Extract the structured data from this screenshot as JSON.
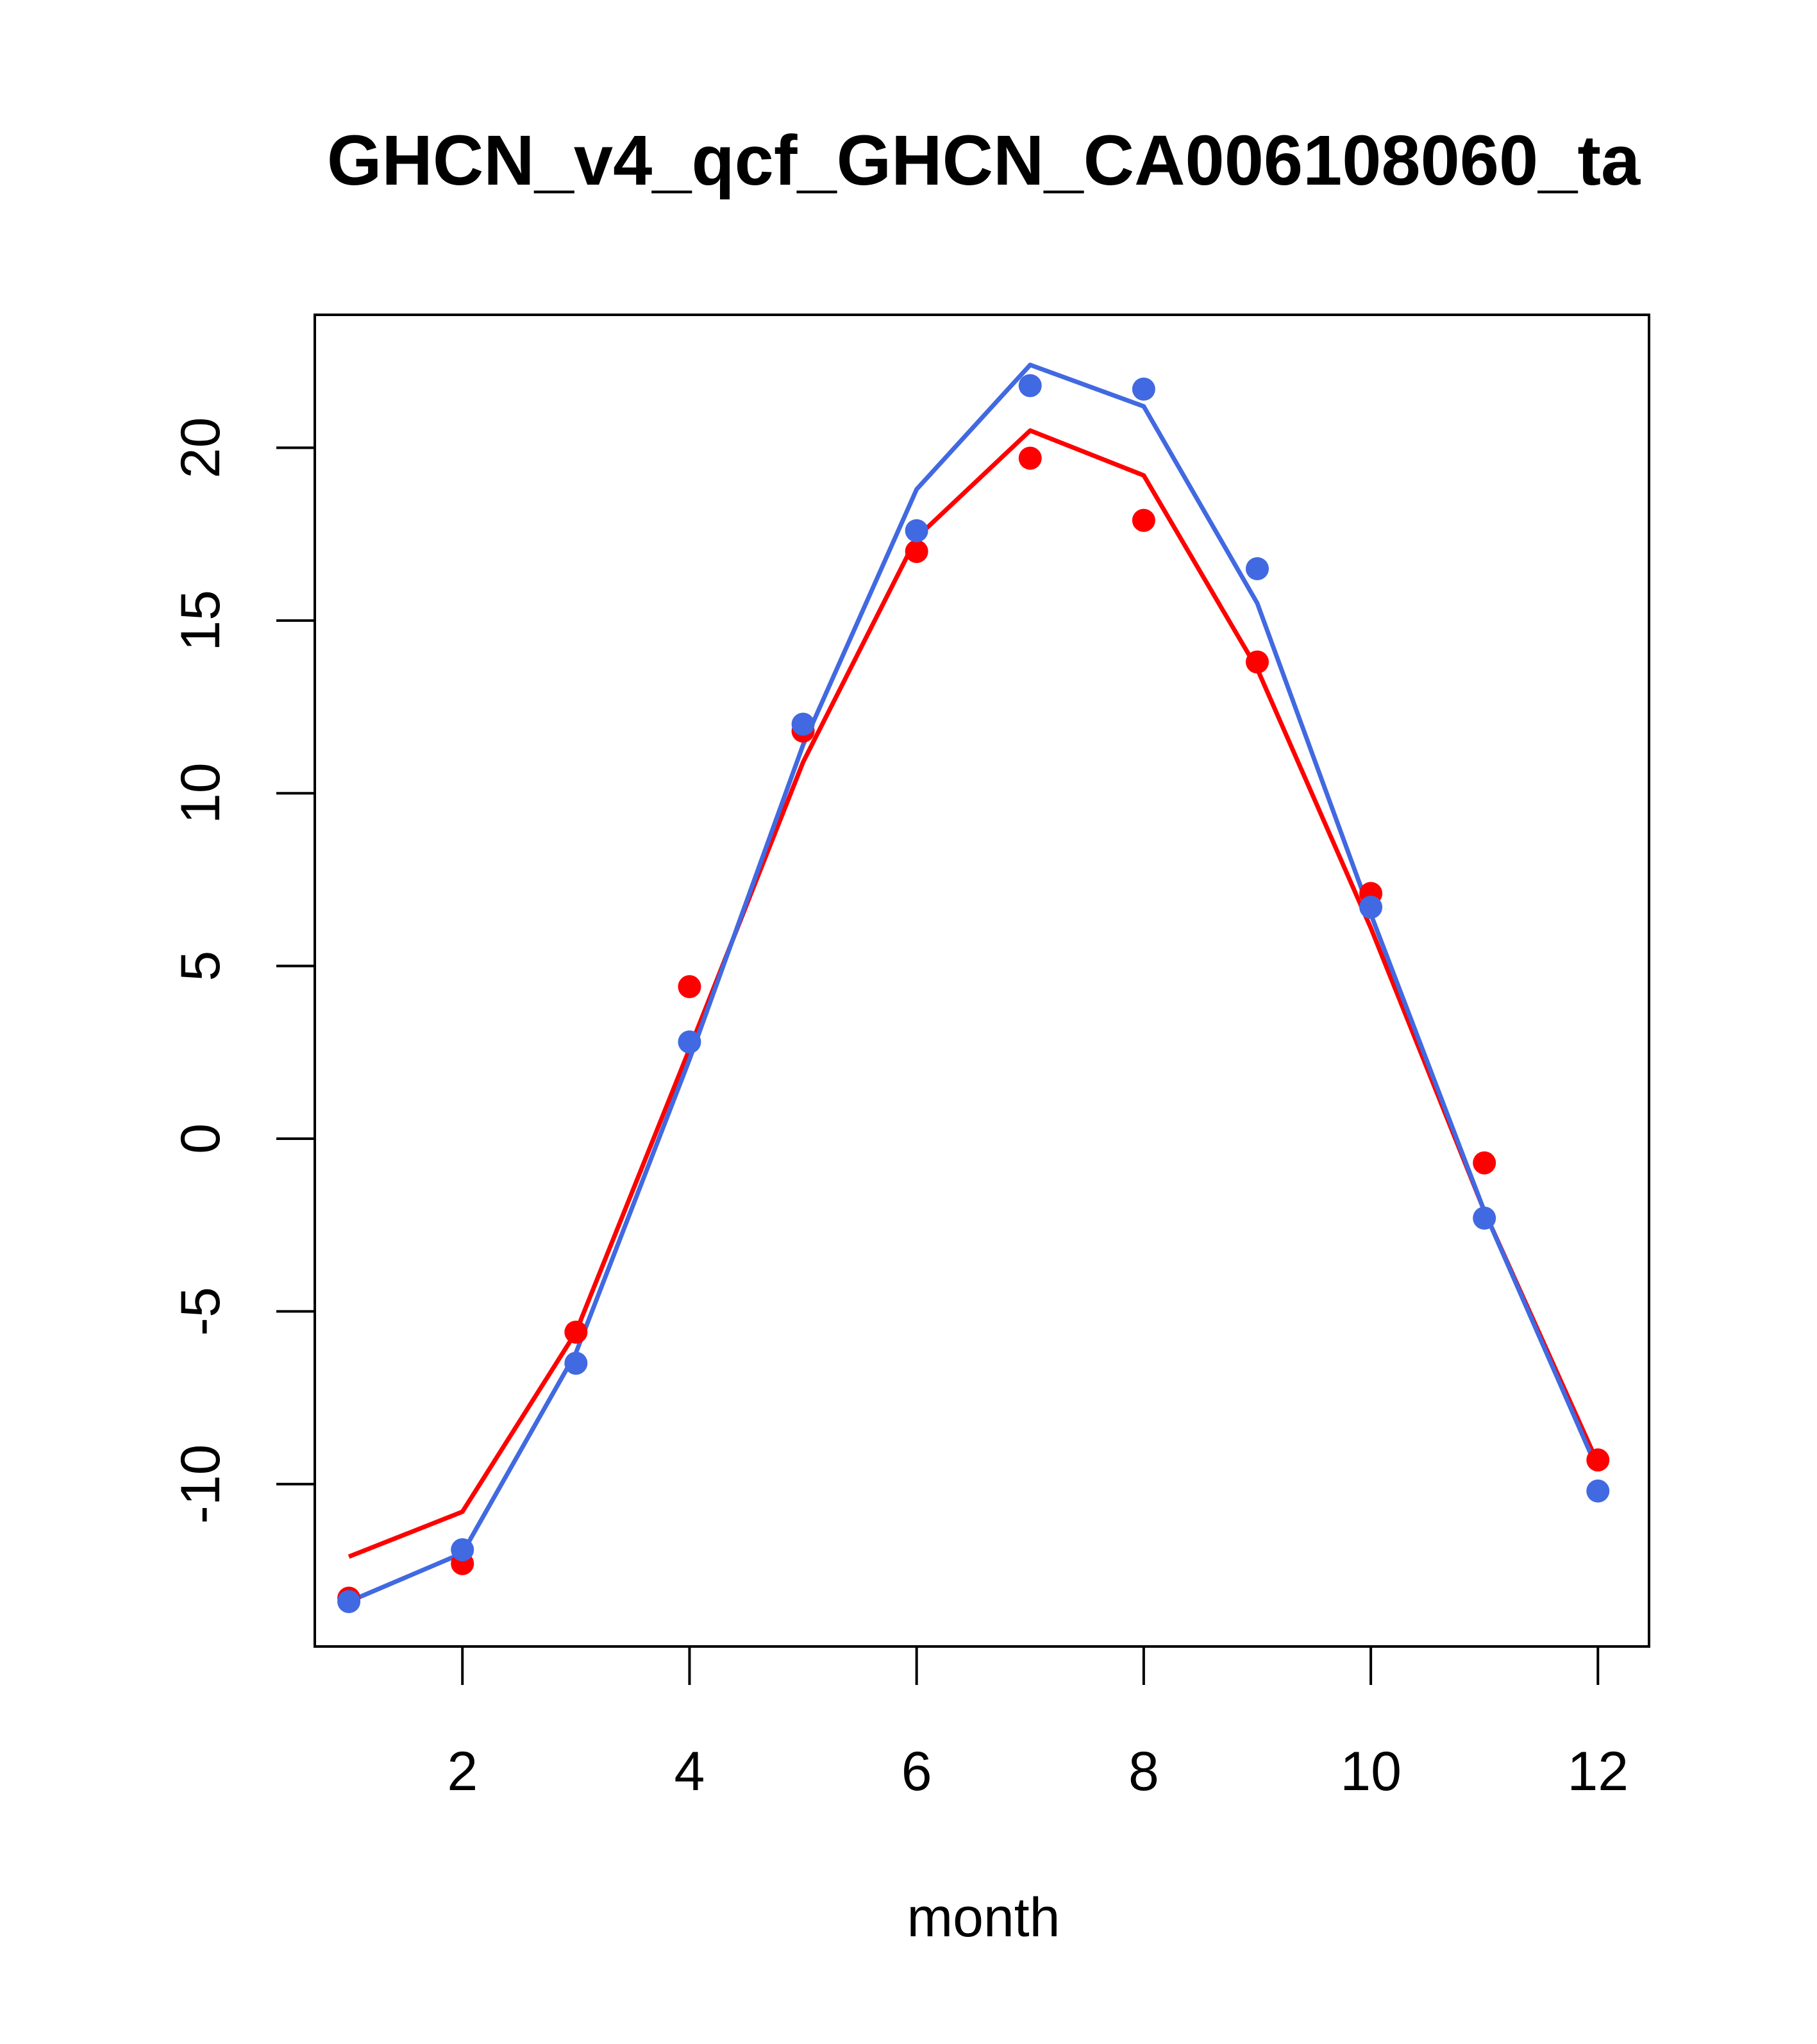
{
  "chart_data": {
    "type": "line",
    "title": "GHCN_v4_qcf_GHCN_CA006108060_ta",
    "xlabel": "month",
    "ylabel": "",
    "xlim": [
      0.7,
      12.45
    ],
    "ylim": [
      -14.7,
      23.85
    ],
    "x_ticks": [
      2,
      4,
      6,
      8,
      10,
      12
    ],
    "y_ticks": [
      -10,
      -5,
      0,
      5,
      10,
      15,
      20
    ],
    "grid": false,
    "legend": "none",
    "x": [
      1,
      2,
      3,
      4,
      5,
      6,
      7,
      8,
      9,
      10,
      11,
      12
    ],
    "series": [
      {
        "color": "#ff0000",
        "line": [
          -12.1,
          -10.8,
          -5.6,
          2.6,
          10.9,
          17.4,
          20.5,
          19.2,
          13.6,
          6.1,
          -2.1,
          -9.4
        ],
        "points": [
          -13.3,
          -12.3,
          -5.6,
          4.4,
          11.8,
          17.0,
          19.7,
          17.9,
          13.8,
          7.1,
          -0.7,
          -9.3
        ]
      },
      {
        "color": "#4169e1",
        "line": [
          -13.4,
          -12.0,
          -6.2,
          2.3,
          11.4,
          18.8,
          22.4,
          21.2,
          15.5,
          6.5,
          -2.1,
          -9.6
        ],
        "points": [
          -13.4,
          -11.9,
          -6.5,
          2.8,
          12.0,
          17.6,
          21.8,
          21.7,
          16.5,
          6.7,
          -2.3,
          -10.2
        ]
      }
    ]
  }
}
